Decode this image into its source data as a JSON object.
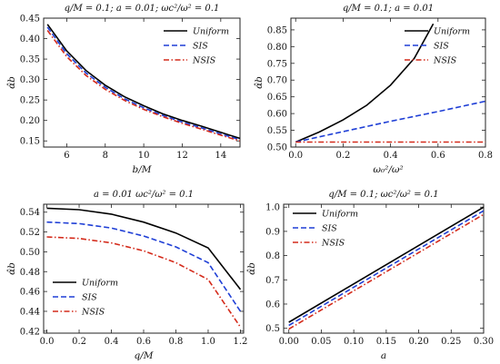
{
  "chart_data": [
    {
      "type": "line",
      "title": "q/M = 0.1;   a = 0.01;   ωc²/ω² = 0.1",
      "xlabel": "b/M",
      "ylabel": "α̂b",
      "xlim": [
        4.8,
        15.0
      ],
      "ylim": [
        0.135,
        0.45
      ],
      "xticks": [
        6,
        8,
        10,
        12,
        14
      ],
      "yticks": [
        0.15,
        0.2,
        0.25,
        0.3,
        0.35,
        0.4,
        0.45
      ],
      "ytick_labels": [
        "0.15",
        "0.20",
        "0.25",
        "0.30",
        "0.35",
        "0.40",
        "0.45"
      ],
      "grid": false,
      "legend": "top-right",
      "series": [
        {
          "name": "Uniform",
          "color": "#000000",
          "dash": "solid",
          "x": [
            5,
            6,
            7,
            8,
            9,
            10,
            11,
            12,
            13,
            14,
            15
          ],
          "y": [
            0.435,
            0.37,
            0.322,
            0.286,
            0.258,
            0.236,
            0.216,
            0.2,
            0.186,
            0.171,
            0.156
          ]
        },
        {
          "name": "SIS",
          "color": "#1f3fd6",
          "dash": "dashed",
          "x": [
            5,
            6,
            7,
            8,
            9,
            10,
            11,
            12,
            13,
            14,
            15
          ],
          "y": [
            0.428,
            0.363,
            0.316,
            0.281,
            0.253,
            0.231,
            0.212,
            0.196,
            0.182,
            0.167,
            0.153
          ]
        },
        {
          "name": "NSIS",
          "color": "#d42a1a",
          "dash": "dashdot",
          "x": [
            5,
            6,
            7,
            8,
            9,
            10,
            11,
            12,
            13,
            14,
            15
          ],
          "y": [
            0.42,
            0.356,
            0.31,
            0.276,
            0.249,
            0.227,
            0.209,
            0.193,
            0.179,
            0.164,
            0.15
          ]
        }
      ]
    },
    {
      "type": "line",
      "title": "q/M = 0.1;   a = 0.01",
      "xlabel": "ω₀²/ω²",
      "ylabel": "α̂b",
      "xlim": [
        -0.02,
        0.8
      ],
      "ylim": [
        0.5,
        0.885
      ],
      "xticks": [
        0.0,
        0.2,
        0.4,
        0.6,
        0.8
      ],
      "xtick_labels": [
        "0.0",
        "0.2",
        "0.4",
        "0.6",
        "0.8"
      ],
      "yticks": [
        0.5,
        0.55,
        0.6,
        0.65,
        0.7,
        0.75,
        0.8,
        0.85
      ],
      "ytick_labels": [
        "0.50",
        "0.55",
        "0.60",
        "0.65",
        "0.70",
        "0.75",
        "0.80",
        "0.85"
      ],
      "grid": false,
      "legend": "top-right",
      "series": [
        {
          "name": "Uniform",
          "color": "#000000",
          "dash": "solid",
          "x": [
            0.0,
            0.1,
            0.2,
            0.3,
            0.4,
            0.5,
            0.58
          ],
          "y": [
            0.515,
            0.545,
            0.581,
            0.625,
            0.685,
            0.765,
            0.868
          ]
        },
        {
          "name": "SIS",
          "color": "#1f3fd6",
          "dash": "dashed",
          "x": [
            0.0,
            0.2,
            0.4,
            0.6,
            0.8
          ],
          "y": [
            0.515,
            0.546,
            0.577,
            0.606,
            0.637
          ]
        },
        {
          "name": "NSIS",
          "color": "#d42a1a",
          "dash": "dashdot",
          "x": [
            0.0,
            0.8
          ],
          "y": [
            0.515,
            0.515
          ]
        }
      ]
    },
    {
      "type": "line",
      "title": "a = 0.01     ωc²/ω² = 0.1",
      "xlabel": "q/M",
      "ylabel": "α̂b",
      "xlim": [
        -0.02,
        1.22
      ],
      "ylim": [
        0.418,
        0.548
      ],
      "xticks": [
        0.0,
        0.2,
        0.4,
        0.6,
        0.8,
        1.0,
        1.2
      ],
      "xtick_labels": [
        "0.0",
        "0.2",
        "0.4",
        "0.6",
        "0.8",
        "1.0",
        "1.2"
      ],
      "yticks": [
        0.42,
        0.44,
        0.46,
        0.48,
        0.5,
        0.52,
        0.54
      ],
      "ytick_labels": [
        "0.42",
        "0.44",
        "0.46",
        "0.48",
        "0.50",
        "0.52",
        "0.54"
      ],
      "grid": false,
      "legend": "bottom-left",
      "series": [
        {
          "name": "Uniform",
          "color": "#000000",
          "dash": "solid",
          "x": [
            0.0,
            0.2,
            0.4,
            0.6,
            0.8,
            1.0,
            1.2
          ],
          "y": [
            0.544,
            0.5425,
            0.538,
            0.53,
            0.519,
            0.504,
            0.462
          ]
        },
        {
          "name": "SIS",
          "color": "#1f3fd6",
          "dash": "dashed",
          "x": [
            0.0,
            0.2,
            0.4,
            0.6,
            0.8,
            1.0,
            1.2
          ],
          "y": [
            0.53,
            0.5285,
            0.524,
            0.516,
            0.505,
            0.489,
            0.44
          ]
        },
        {
          "name": "NSIS",
          "color": "#d42a1a",
          "dash": "dashdot",
          "x": [
            0.0,
            0.2,
            0.4,
            0.6,
            0.8,
            1.0,
            1.2
          ],
          "y": [
            0.515,
            0.5135,
            0.509,
            0.501,
            0.489,
            0.472,
            0.424
          ]
        }
      ]
    },
    {
      "type": "line",
      "title": "q/M = 0.1;   ωc²/ω² = 0.1",
      "xlabel": "a",
      "ylabel": "α̂b",
      "xlim": [
        -0.008,
        0.3
      ],
      "ylim": [
        0.48,
        1.012
      ],
      "xticks": [
        0.0,
        0.05,
        0.1,
        0.15,
        0.2,
        0.25,
        0.3
      ],
      "xtick_labels": [
        "0.00",
        "0.05",
        "0.10",
        "0.15",
        "0.20",
        "0.25",
        "0.30"
      ],
      "yticks": [
        0.5,
        0.6,
        0.7,
        0.8,
        0.9,
        1.0
      ],
      "ytick_labels": [
        "0.5",
        "0.6",
        "0.7",
        "0.8",
        "0.9",
        "1.0"
      ],
      "grid": false,
      "legend": "top-left",
      "series": [
        {
          "name": "Uniform",
          "color": "#000000",
          "dash": "solid",
          "x": [
            0.0,
            0.3
          ],
          "y": [
            0.525,
            1.0
          ]
        },
        {
          "name": "SIS",
          "color": "#1f3fd6",
          "dash": "dashed",
          "x": [
            0.0,
            0.3
          ],
          "y": [
            0.512,
            0.985
          ]
        },
        {
          "name": "NSIS",
          "color": "#d42a1a",
          "dash": "dashdot",
          "x": [
            0.0,
            0.3
          ],
          "y": [
            0.497,
            0.97
          ]
        }
      ]
    }
  ]
}
